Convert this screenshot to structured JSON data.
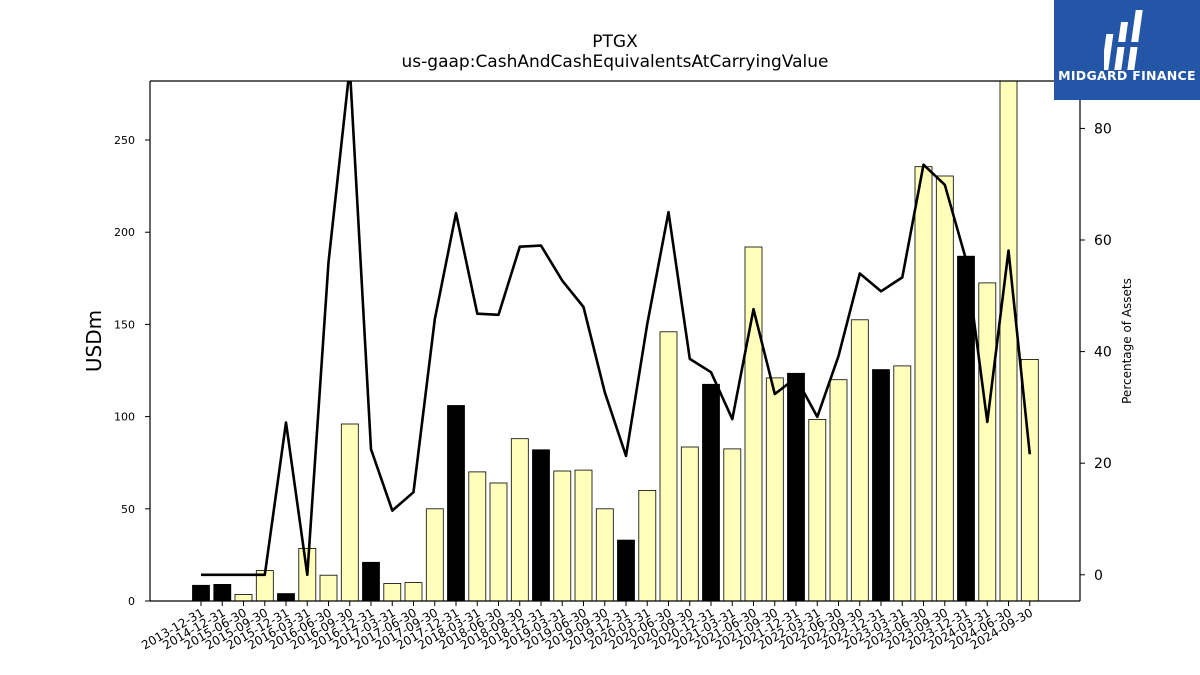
{
  "header": {
    "title": "PTGX",
    "subtitle": "us-gaap:CashAndCashEquivalentsAtCarryingValue"
  },
  "logo": {
    "text": "MIDGARD FINANCE",
    "icon": "midgard-logo-icon",
    "color": "#2456a8"
  },
  "chart_data": {
    "type": "bar",
    "title": "PTGX",
    "subtitle": "us-gaap:CashAndCashEquivalentsAtCarryingValue",
    "ylabel": "USDm",
    "y2label": "Percentage of Assets",
    "ylim": [
      0,
      282
    ],
    "y2lim": [
      -4.7,
      88.5
    ],
    "yticks": [
      0,
      50,
      100,
      150,
      200,
      250
    ],
    "y2ticks": [
      0,
      20,
      40,
      60,
      80
    ],
    "grid": false,
    "colors": {
      "annual": "#000000",
      "quarterly": "#ffffbb",
      "line": "#000000",
      "edge": "#000000"
    },
    "categories": [
      "2013-12-31",
      "2014-12-31",
      "2015-06-30",
      "2015-09-30",
      "2015-12-31",
      "2016-03-31",
      "2016-06-30",
      "2016-09-30",
      "2016-12-31",
      "2017-03-31",
      "2017-06-30",
      "2017-09-30",
      "2017-12-31",
      "2018-03-31",
      "2018-06-30",
      "2018-09-30",
      "2018-12-31",
      "2019-03-31",
      "2019-06-30",
      "2019-09-30",
      "2019-12-31",
      "2020-03-31",
      "2020-06-30",
      "2020-09-30",
      "2020-12-31",
      "2021-03-31",
      "2021-06-30",
      "2021-09-30",
      "2021-12-31",
      "2022-03-31",
      "2022-06-30",
      "2022-09-30",
      "2022-12-31",
      "2023-03-31",
      "2023-06-30",
      "2023-09-30",
      "2023-12-31",
      "2024-03-31",
      "2024-06-30",
      "2024-09-30"
    ],
    "series": [
      {
        "kind": "bar",
        "values": [
          8.5,
          9,
          3.5,
          16.5,
          4,
          28.5,
          14,
          96,
          21,
          9.5,
          10,
          50,
          106,
          70,
          64,
          88,
          82,
          70.5,
          71,
          50,
          33,
          60,
          146,
          83.5,
          117.5,
          82.5,
          192,
          121,
          123.5,
          98.5,
          120,
          152.5,
          125.5,
          127.5,
          235.5,
          230.5,
          187,
          172.5,
          282,
          131
        ],
        "annual": [
          true,
          true,
          false,
          false,
          true,
          false,
          false,
          false,
          true,
          false,
          false,
          false,
          true,
          false,
          false,
          false,
          true,
          false,
          false,
          false,
          true,
          false,
          false,
          false,
          true,
          false,
          false,
          false,
          true,
          false,
          false,
          false,
          true,
          false,
          false,
          false,
          true,
          false,
          false,
          false
        ]
      },
      {
        "kind": "line",
        "axis": "right",
        "values": [
          0,
          0,
          0,
          0,
          27.3,
          0,
          56,
          91,
          22.5,
          11.5,
          14.8,
          45.8,
          64.8,
          46.8,
          46.6,
          58.8,
          59,
          52.7,
          48,
          32.7,
          21.3,
          45,
          65,
          38.7,
          36.3,
          27.9,
          47.6,
          32.4,
          35.3,
          28.3,
          39.2,
          54,
          50.8,
          53.3,
          73.5,
          69.9,
          56.5,
          27.4,
          58.1,
          21.6
        ]
      }
    ]
  }
}
